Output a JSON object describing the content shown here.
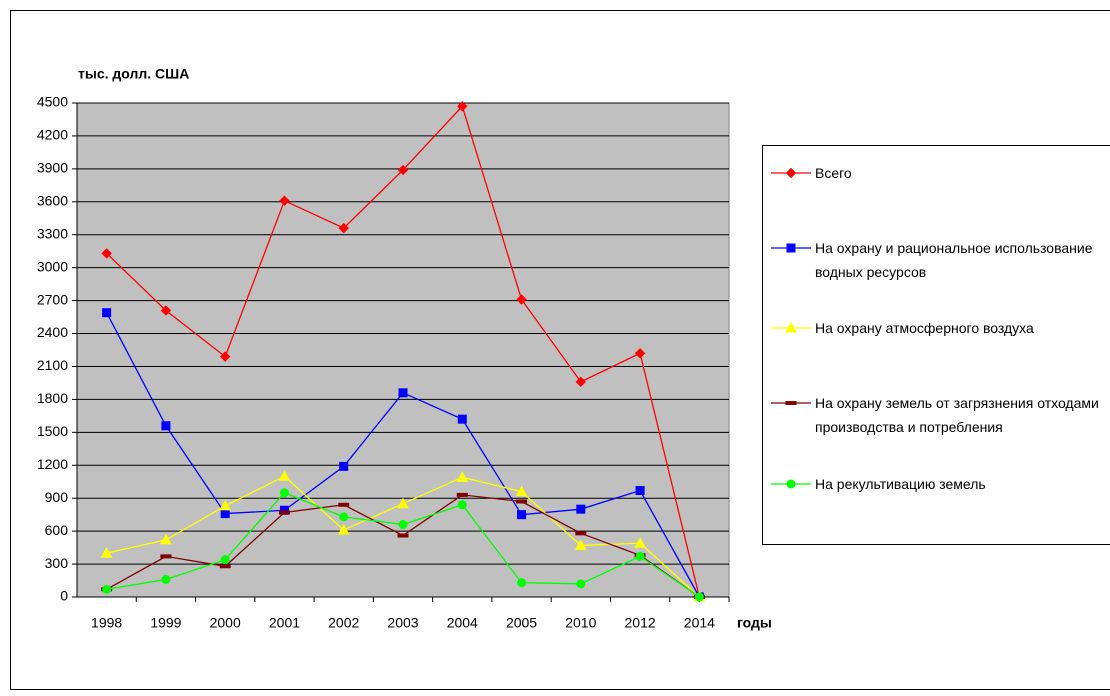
{
  "chart_data": {
    "type": "line",
    "y_label": "тыс. долл. США",
    "x_label": "годы",
    "categories": [
      "1998",
      "1999",
      "2000",
      "2001",
      "2002",
      "2003",
      "2004",
      "2005",
      "2010",
      "2012",
      "2014"
    ],
    "series": [
      {
        "name": "Всего",
        "color": "#ff0000",
        "marker": "diamond",
        "values": [
          3130,
          2610,
          2190,
          3610,
          3360,
          3890,
          4470,
          2710,
          1960,
          2220,
          0
        ]
      },
      {
        "name": "На охрану и рациональное использование водных ресурсов",
        "color": "#0000ff",
        "marker": "square",
        "values": [
          2590,
          1560,
          760,
          790,
          1190,
          1860,
          1620,
          750,
          800,
          970,
          0
        ]
      },
      {
        "name": "На охрану атмосферного воздуха",
        "color": "#ffff00",
        "marker": "triangle",
        "values": [
          400,
          520,
          830,
          1100,
          610,
          850,
          1090,
          960,
          470,
          490,
          0
        ]
      },
      {
        "name": "На охрану земель от загрязнения отходами производства и потребления",
        "color": "#800000",
        "marker": "dash",
        "values": [
          70,
          370,
          280,
          770,
          840,
          560,
          930,
          870,
          580,
          380,
          0
        ]
      },
      {
        "name": "На рекультивацию земель",
        "color": "#00ff00",
        "marker": "circle",
        "values": [
          70,
          160,
          340,
          950,
          730,
          660,
          840,
          130,
          120,
          370,
          0
        ]
      }
    ],
    "ylim": [
      0,
      4500
    ],
    "yticks": [
      0,
      300,
      600,
      900,
      1200,
      1500,
      1800,
      2100,
      2400,
      2700,
      3000,
      3300,
      3600,
      3900,
      4200,
      4500
    ],
    "grid": true,
    "legend": "right"
  }
}
